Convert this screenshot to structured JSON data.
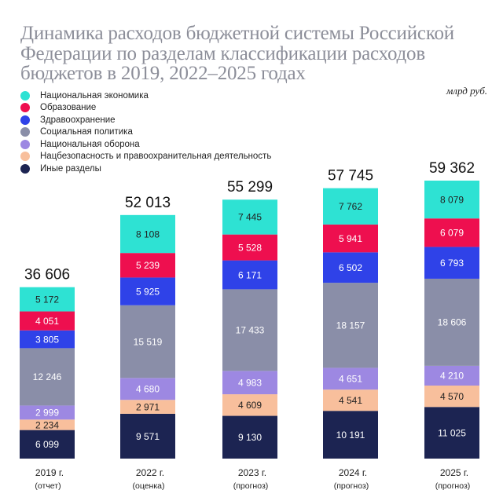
{
  "title": "Динамика расходов бюджетной системы Российской Федерации по разделам классификации расходов бюджетов в 2019, 2022–2025 годах",
  "unit": "млрд руб.",
  "chart_data": {
    "type": "bar",
    "stacked": true,
    "categories": [
      "2019 г.",
      "2022 г.",
      "2023 г.",
      "2024 г.",
      "2025 г."
    ],
    "category_notes": [
      "(отчет)",
      "(оценка)",
      "(прогноз)",
      "(прогноз)",
      "(прогноз)"
    ],
    "totals": [
      "36 606",
      "52 013",
      "55 299",
      "57 745",
      "59 362"
    ],
    "total_values": [
      36606,
      52013,
      55299,
      57745,
      59362
    ],
    "legend_placement": "top-left",
    "series": [
      {
        "name": "Иные разделы",
        "color": "#1c2452",
        "text": "#ffffff",
        "values": [
          6099,
          9571,
          9130,
          10191,
          11025
        ],
        "labels": [
          "6 099",
          "9 571",
          "9 130",
          "10 191",
          "11 025"
        ]
      },
      {
        "name": "Нацбезопасность и правоохранительная деятельность",
        "color": "#f8bf9c",
        "text": "#222222",
        "values": [
          2234,
          2971,
          4609,
          4541,
          4570
        ],
        "labels": [
          "2 234",
          "2 971",
          "4 609",
          "4 541",
          "4 570"
        ]
      },
      {
        "name": "Национальная оборона",
        "color": "#9d88e2",
        "text": "#ffffff",
        "values": [
          2999,
          4680,
          4983,
          4651,
          4210
        ],
        "labels": [
          "2 999",
          "4 680",
          "4 983",
          "4 651",
          "4 210"
        ]
      },
      {
        "name": "Социальная политика",
        "color": "#8a8ea8",
        "text": "#ffffff",
        "values": [
          12246,
          15519,
          17433,
          18157,
          18606
        ],
        "labels": [
          "12 246",
          "15 519",
          "17 433",
          "18 157",
          "18 606"
        ]
      },
      {
        "name": "Здравоохранение",
        "color": "#2f42e8",
        "text": "#ffffff",
        "values": [
          3805,
          5925,
          6171,
          6502,
          6793
        ],
        "labels": [
          "3 805",
          "5 925",
          "6 171",
          "6 502",
          "6 793"
        ]
      },
      {
        "name": "Образование",
        "color": "#ee0f4f",
        "text": "#ffffff",
        "values": [
          4051,
          5239,
          5528,
          5941,
          6079
        ],
        "labels": [
          "4 051",
          "5 239",
          "5 528",
          "5 941",
          "6 079"
        ]
      },
      {
        "name": "Национальная экономика",
        "color": "#2ee2d3",
        "text": "#222222",
        "values": [
          5172,
          8108,
          7445,
          7762,
          8079
        ],
        "labels": [
          "5 172",
          "8 108",
          "7 445",
          "7 762",
          "8 079"
        ]
      }
    ],
    "legend_order": [
      "Национальная экономика",
      "Образование",
      "Здравоохранение",
      "Социальная политика",
      "Национальная оборона",
      "Нацбезопасность и правоохранительная деятельность",
      "Иные разделы"
    ]
  }
}
